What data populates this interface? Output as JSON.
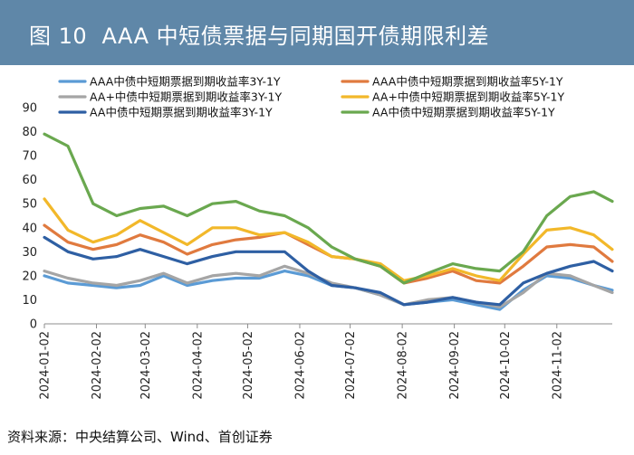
{
  "header": {
    "figure_no": "图 10",
    "title": "AAA 中短债票据与同期国开债期限利差"
  },
  "source": "资料来源：中央结算公司、Wind、首创证券",
  "chart_data": {
    "type": "line",
    "title": "AAA 中短债票据与同期国开债期限利差",
    "xlabel": "",
    "ylabel": "",
    "ylim": [
      0,
      90
    ],
    "yticks": [
      0,
      10,
      20,
      30,
      40,
      50,
      60,
      70,
      80,
      90
    ],
    "xlim": [
      "2024-01-02",
      "2024-12-05"
    ],
    "x_tick_labels": [
      "2024-01-02",
      "2024-02-02",
      "2024-03-02",
      "2024-04-02",
      "2024-05-02",
      "2024-06-02",
      "2024-07-02",
      "2024-08-02",
      "2024-09-02",
      "2024-10-02",
      "2024-11-02"
    ],
    "grid": false,
    "legend_position": "top",
    "x": [
      "2024-01-02",
      "2024-01-16",
      "2024-01-31",
      "2024-02-14",
      "2024-02-28",
      "2024-03-13",
      "2024-03-27",
      "2024-04-11",
      "2024-04-25",
      "2024-05-09",
      "2024-05-24",
      "2024-06-07",
      "2024-06-21",
      "2024-07-05",
      "2024-07-20",
      "2024-08-03",
      "2024-08-17",
      "2024-09-01",
      "2024-09-15",
      "2024-09-29",
      "2024-10-13",
      "2024-10-27",
      "2024-11-10",
      "2024-11-24",
      "2024-12-05"
    ],
    "series": [
      {
        "name": "AAA中债中短期票据到期收益率3Y-1Y",
        "color": "#5b9bd5",
        "values": [
          20,
          17,
          16,
          15,
          16,
          20,
          16,
          18,
          19,
          19,
          22,
          20,
          16,
          15,
          12,
          8,
          9,
          10,
          8,
          6,
          14,
          20,
          19,
          16,
          14
        ]
      },
      {
        "name": "AAA中债中短期票据到期收益率5Y-1Y",
        "color": "#e07a3f",
        "values": [
          41,
          34,
          31,
          33,
          37,
          34,
          29,
          33,
          35,
          36,
          38,
          33,
          28,
          27,
          24,
          17,
          19,
          22,
          18,
          17,
          24,
          32,
          33,
          32,
          26
        ]
      },
      {
        "name": "AA+中债中短期票据到期收益率3Y-1Y",
        "color": "#a5a5a5",
        "values": [
          22,
          19,
          17,
          16,
          18,
          21,
          17,
          20,
          21,
          20,
          24,
          21,
          17,
          15,
          12,
          8,
          10,
          11,
          9,
          7,
          13,
          21,
          20,
          16,
          13
        ]
      },
      {
        "name": "AA+中债中短期票据到期收益率5Y-1Y",
        "color": "#f2b82a",
        "values": [
          52,
          39,
          34,
          37,
          43,
          38,
          33,
          40,
          40,
          37,
          38,
          34,
          28,
          27,
          25,
          18,
          20,
          23,
          20,
          18,
          29,
          39,
          40,
          37,
          31
        ]
      },
      {
        "name": "AA中债中短期票据到期收益率3Y-1Y",
        "color": "#2e5fa3",
        "values": [
          36,
          30,
          27,
          28,
          31,
          28,
          25,
          28,
          30,
          30,
          30,
          22,
          16,
          15,
          13,
          8,
          9,
          11,
          9,
          8,
          17,
          21,
          24,
          26,
          22
        ]
      },
      {
        "name": "AA中债中短期票据到期收益率5Y-1Y",
        "color": "#6aa84f",
        "values": [
          79,
          74,
          50,
          45,
          48,
          49,
          45,
          50,
          51,
          47,
          45,
          40,
          32,
          27,
          24,
          17,
          21,
          25,
          23,
          22,
          30,
          45,
          53,
          55,
          51
        ]
      }
    ]
  }
}
